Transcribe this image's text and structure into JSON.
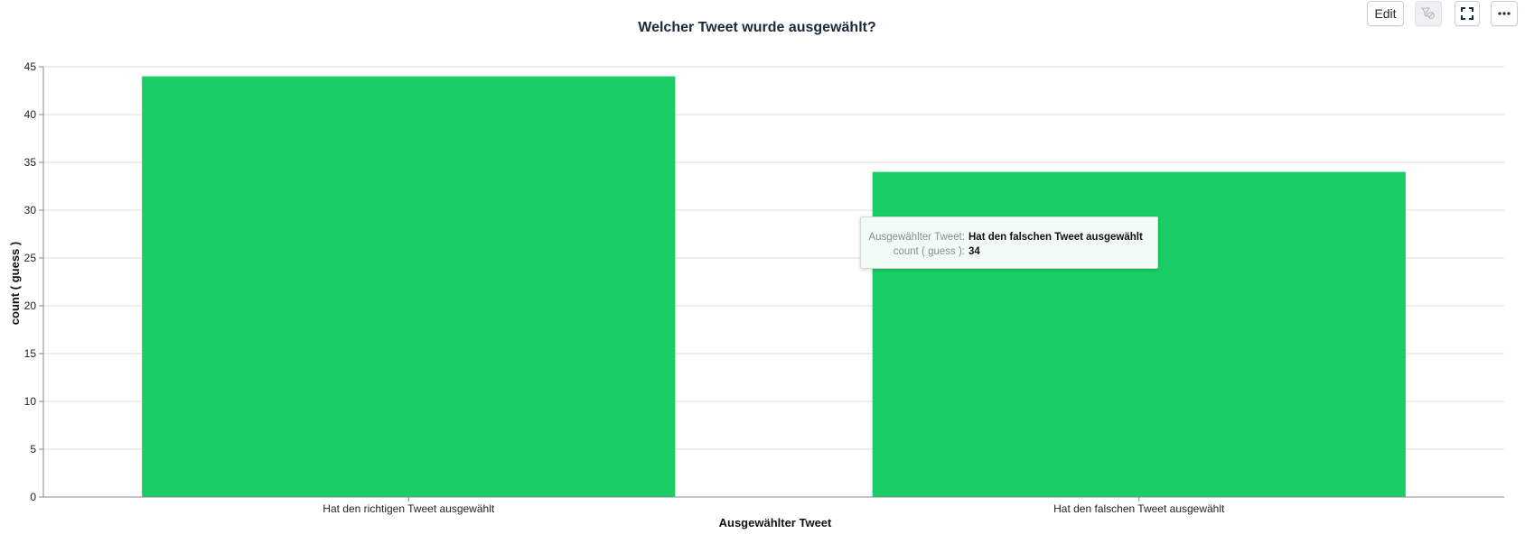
{
  "toolbar": {
    "edit_label": "Edit",
    "filter_icon": "filter-clear-icon",
    "fullscreen_icon": "fullscreen-icon",
    "more_icon": "more-options-icon"
  },
  "tooltip": {
    "category_key": "Ausgewählter Tweet:",
    "category_value": "Hat den falschen Tweet ausgewählt",
    "count_key": "count ( guess ):",
    "count_value": "34"
  },
  "chart_data": {
    "type": "bar",
    "title": "Welcher Tweet wurde ausgewählt?",
    "xlabel": "Ausgewählter Tweet",
    "ylabel": "count ( guess )",
    "categories": [
      "Hat den richtigen Tweet ausgewählt",
      "Hat den falschen Tweet ausgewählt"
    ],
    "values": [
      44,
      34
    ],
    "ylim": [
      0,
      45
    ],
    "yticks": [
      0,
      5,
      10,
      15,
      20,
      25,
      30,
      35,
      40,
      45
    ],
    "grid": true,
    "bar_color": "#1acd64",
    "hovered_category": "Hat den falschen Tweet ausgewählt"
  }
}
